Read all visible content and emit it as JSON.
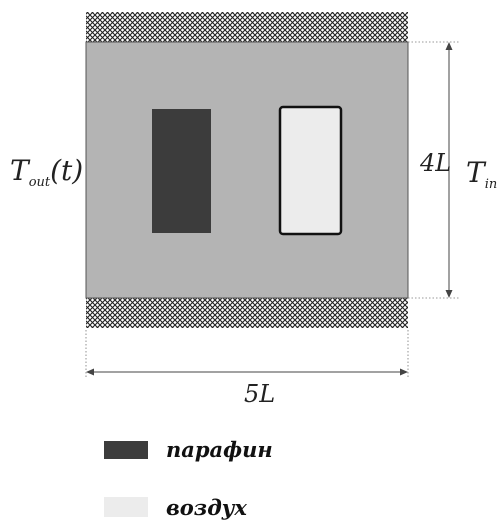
{
  "colors": {
    "domain_fill": "#b4b4b4",
    "domain_stroke": "#555555",
    "paraffin": "#3c3c3c",
    "air": "#ececec",
    "insulation_mesh": "#222222",
    "dimension_line": "#444444",
    "text": "#222222"
  },
  "labels": {
    "t_out_main": "T",
    "t_out_sub": "out",
    "t_out_arg": "(t)",
    "t_in_main": "T",
    "t_in_sub": "in",
    "height": "4L",
    "width": "5L"
  },
  "legend": [
    {
      "label": "парафин",
      "color_key": "paraffin",
      "name": "legend-paraffin"
    },
    {
      "label": "воздух",
      "color_key": "air",
      "name": "legend-air"
    }
  ]
}
